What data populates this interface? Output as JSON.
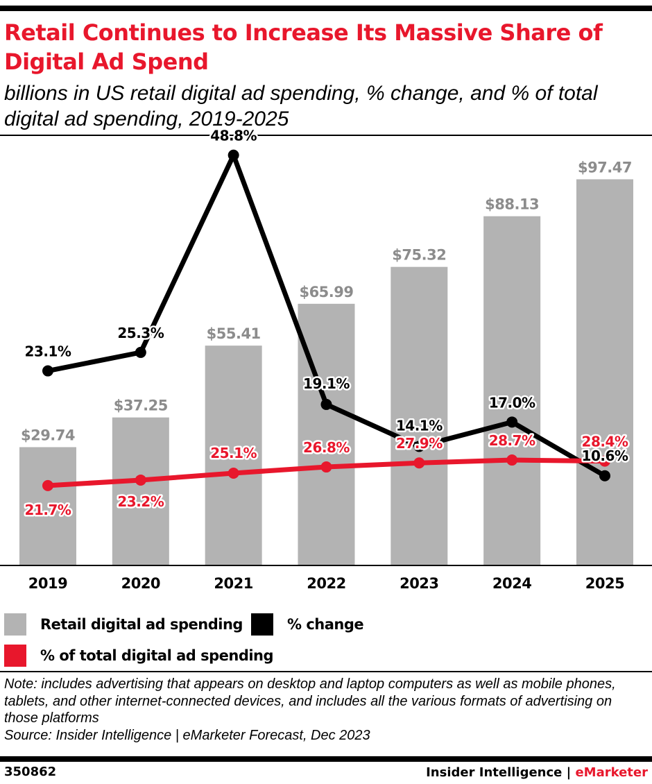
{
  "title": "Retail Continues to Increase Its Massive Share of Digital Ad Spend",
  "subtitle": "billions in US retail digital ad spending, % change, and % of total digital ad spending, 2019-2025",
  "colors": {
    "accent_red": "#e8172c",
    "bar_gray": "#b3b3b3",
    "bar_label_gray": "#8c8c8c",
    "line_black": "#000000"
  },
  "chart_data": {
    "type": "bar",
    "categories": [
      "2019",
      "2020",
      "2021",
      "2022",
      "2023",
      "2024",
      "2025"
    ],
    "series": [
      {
        "name": "Retail digital ad spending",
        "type": "bar",
        "values": [
          29.74,
          37.25,
          55.41,
          65.99,
          75.32,
          88.13,
          97.47
        ],
        "labels": [
          "$29.74",
          "$37.25",
          "$55.41",
          "$65.99",
          "$75.32",
          "$88.13",
          "$97.47"
        ],
        "color": "#b3b3b3"
      },
      {
        "name": "% change",
        "type": "line",
        "values": [
          23.1,
          25.3,
          48.8,
          19.1,
          14.1,
          17.0,
          10.6
        ],
        "labels": [
          "23.1%",
          "25.3%",
          "48.8%",
          "19.1%",
          "14.1%",
          "17.0%",
          "10.6%"
        ],
        "color": "#000000"
      },
      {
        "name": "% of total digital ad spending",
        "type": "line",
        "values": [
          21.7,
          23.2,
          25.1,
          26.8,
          27.9,
          28.7,
          28.4
        ],
        "labels": [
          "21.7%",
          "23.2%",
          "25.1%",
          "26.8%",
          "27.9%",
          "28.7%",
          "28.4%"
        ],
        "color": "#e8172c"
      }
    ],
    "legend": "bottom",
    "grid": false
  },
  "legend": {
    "items": [
      {
        "label": "Retail digital ad spending",
        "color": "#b3b3b3"
      },
      {
        "label": "% change",
        "color": "#000000"
      },
      {
        "label": "% of total digital ad spending",
        "color": "#e8172c"
      }
    ]
  },
  "note": {
    "text": "Note: includes advertising that appears on desktop and laptop computers as well as mobile phones, tablets, and other internet-connected devices, and includes all the various formats of advertising on those platforms",
    "source": "Source: Insider Intelligence | eMarketer Forecast, Dec 2023"
  },
  "footer": {
    "chart_id": "350862",
    "brand_part1": "Insider Intelligence | ",
    "brand_part2": "eMarketer"
  }
}
